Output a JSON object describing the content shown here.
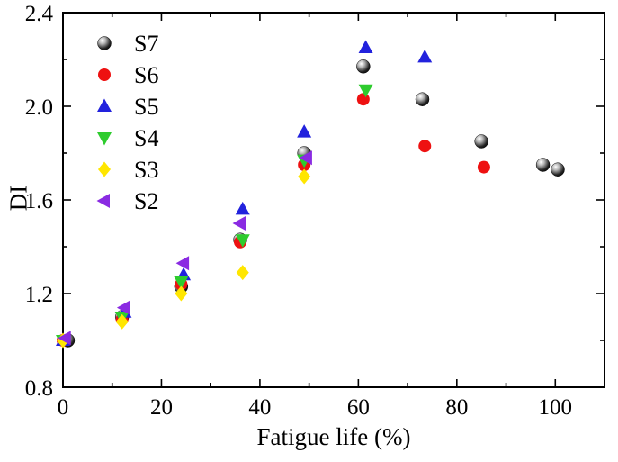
{
  "chart_data": {
    "type": "scatter",
    "title": "",
    "xlabel": "Fatigue life (%)",
    "ylabel": "DI",
    "xlim": [
      0,
      110
    ],
    "ylim": [
      0.8,
      2.4
    ],
    "x_major_ticks": [
      0,
      20,
      40,
      60,
      80,
      100
    ],
    "x_minor_step": 10,
    "y_major_ticks": [
      0.8,
      1.2,
      1.6,
      2.0,
      2.4
    ],
    "y_minor_step": 0.2,
    "grid": false,
    "legend_position": "upper-left",
    "frame_color": "#000000",
    "series": [
      {
        "name": "S7",
        "marker": "sphere",
        "color": "#111111",
        "points": [
          [
            1,
            1.0
          ],
          [
            12,
            1.1
          ],
          [
            24,
            1.23
          ],
          [
            36,
            1.43
          ],
          [
            49,
            1.8
          ],
          [
            61,
            2.17
          ],
          [
            73,
            2.03
          ],
          [
            85,
            1.85
          ],
          [
            97.5,
            1.75
          ],
          [
            100.5,
            1.73
          ]
        ]
      },
      {
        "name": "S6",
        "marker": "circle",
        "color": "#ee1111",
        "points": [
          [
            0,
            1.0
          ],
          [
            12,
            1.09
          ],
          [
            24,
            1.24
          ],
          [
            36,
            1.42
          ],
          [
            49,
            1.75
          ],
          [
            61,
            2.03
          ],
          [
            73.5,
            1.83
          ],
          [
            85.5,
            1.74
          ]
        ]
      },
      {
        "name": "S5",
        "marker": "triangle-up",
        "color": "#2222dd",
        "points": [
          [
            0,
            1.0
          ],
          [
            12.5,
            1.12
          ],
          [
            24.5,
            1.28
          ],
          [
            36.5,
            1.56
          ],
          [
            49,
            1.89
          ],
          [
            61.5,
            2.25
          ],
          [
            73.5,
            2.21
          ]
        ]
      },
      {
        "name": "S4",
        "marker": "triangle-down",
        "color": "#2ecc2e",
        "points": [
          [
            0,
            1.0
          ],
          [
            12,
            1.1
          ],
          [
            24,
            1.25
          ],
          [
            36.5,
            1.43
          ],
          [
            49,
            1.77
          ],
          [
            61.5,
            2.07
          ]
        ]
      },
      {
        "name": "S3",
        "marker": "diamond",
        "color": "#ffe600",
        "points": [
          [
            0,
            1.0
          ],
          [
            12,
            1.08
          ],
          [
            24,
            1.2
          ],
          [
            36.5,
            1.29
          ],
          [
            49,
            1.7
          ]
        ]
      },
      {
        "name": "S2",
        "marker": "triangle-left",
        "color": "#8a2be2",
        "points": [
          [
            0.5,
            1.01
          ],
          [
            12.5,
            1.14
          ],
          [
            24.5,
            1.33
          ],
          [
            36,
            1.5
          ],
          [
            49.5,
            1.78
          ]
        ]
      }
    ]
  }
}
